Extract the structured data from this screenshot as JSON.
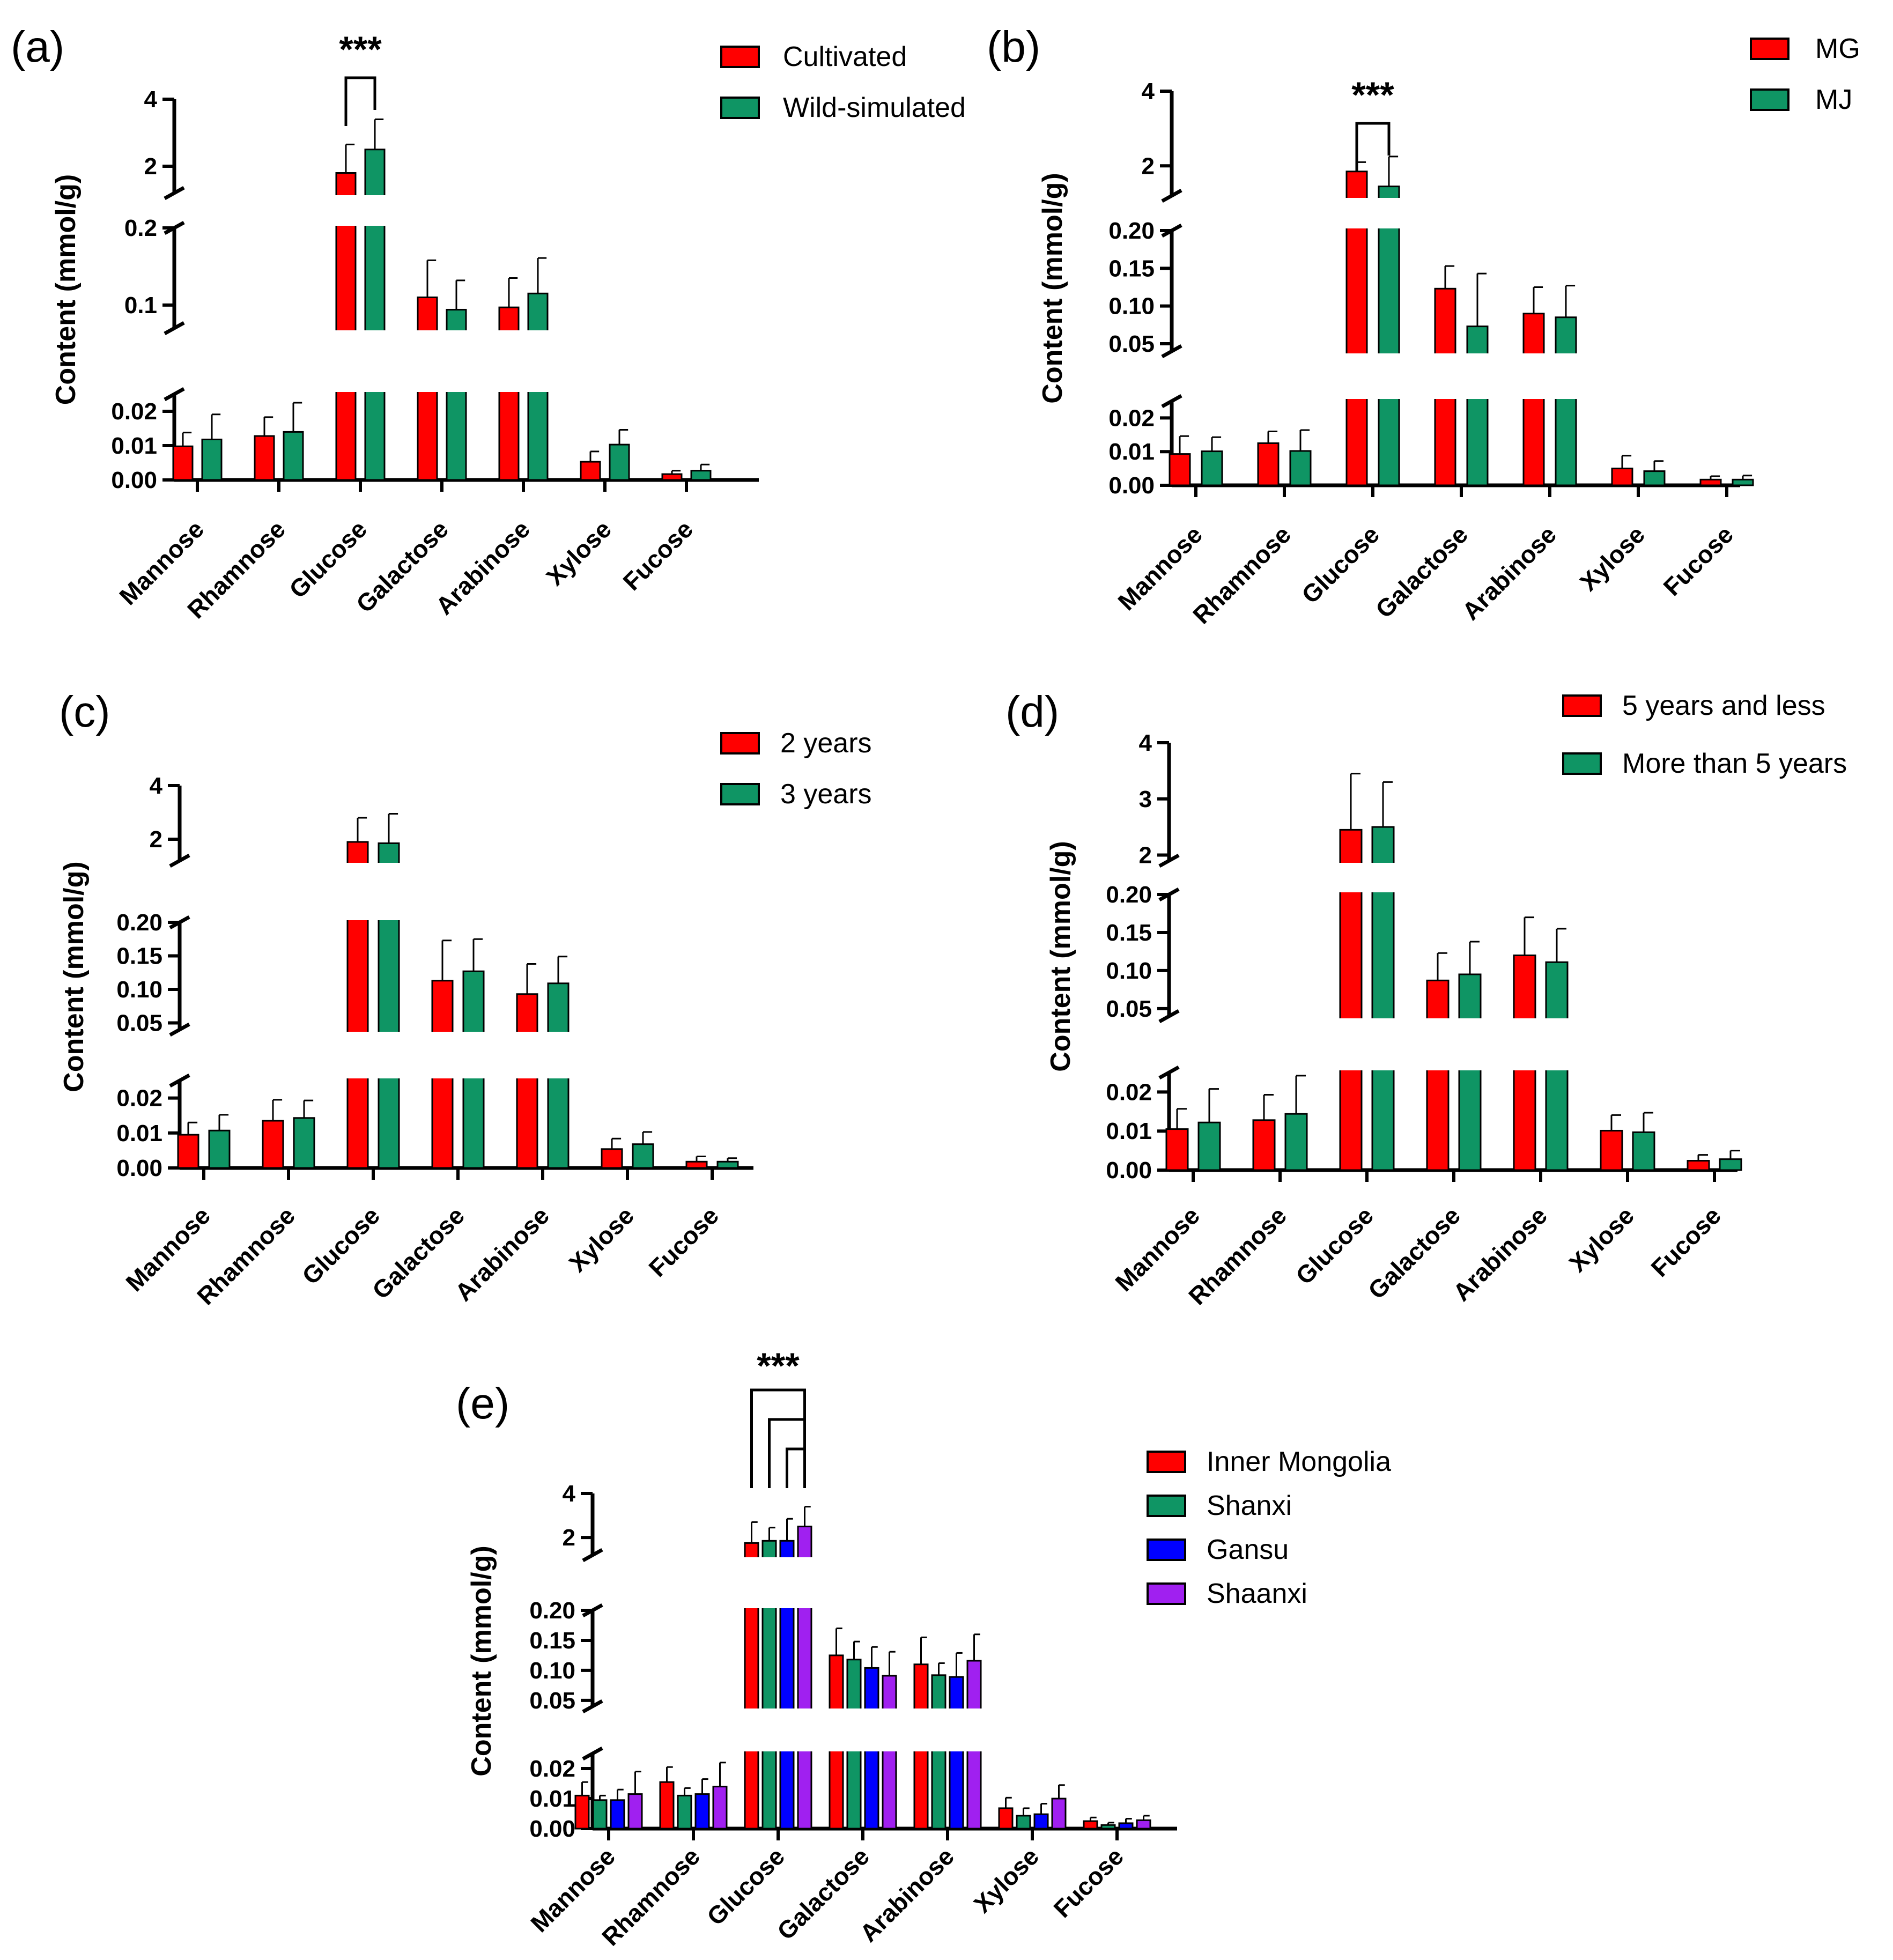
{
  "colors": {
    "red": "#ff0000",
    "green": "#0f9564",
    "blue": "#0000ff",
    "purple": "#a020f0"
  },
  "chart_data": [
    {
      "id": "a",
      "type": "bar",
      "panel_label": "(a)",
      "ylabel": "Content (mmol/g)",
      "categories": [
        "Mannose",
        "Rhamnose",
        "Glucose",
        "Galactose",
        "Arabinose",
        "Xylose",
        "Fucose"
      ],
      "series": [
        {
          "name": "Cultivated",
          "color": "#ff0000",
          "values": [
            0.0098,
            0.0128,
            1.8,
            0.11,
            0.097,
            0.0053,
            0.0017
          ],
          "errors": [
            0.004,
            0.0055,
            0.85,
            0.048,
            0.038,
            0.003,
            0.001
          ]
        },
        {
          "name": "Wild-simulated",
          "color": "#0f9564",
          "values": [
            0.0118,
            0.014,
            2.5,
            0.094,
            0.115,
            0.0103,
            0.0027
          ],
          "errors": [
            0.0073,
            0.0085,
            0.9,
            0.038,
            0.046,
            0.0043,
            0.0018
          ]
        }
      ],
      "segments": [
        {
          "min": 0,
          "max": 0.025,
          "ticks": [
            "0.00",
            "0.01",
            "0.02"
          ],
          "tickvals": [
            0,
            0.01,
            0.02
          ]
        },
        {
          "min": 0.07,
          "max": 0.2,
          "ticks": [
            "0.1",
            "0.2"
          ],
          "tickvals": [
            0.1,
            0.2
          ]
        },
        {
          "min": 1.2,
          "max": 4,
          "ticks": [
            "2",
            "4"
          ],
          "tickvals": [
            2,
            4
          ]
        }
      ],
      "significance": [
        {
          "category": "Glucose",
          "label": "***"
        }
      ]
    },
    {
      "id": "b",
      "type": "bar",
      "panel_label": "(b)",
      "ylabel": "Content (mmol/g)",
      "categories": [
        "Mannose",
        "Rhamnose",
        "Glucose",
        "Galactose",
        "Arabinose",
        "Xylose",
        "Fucose"
      ],
      "series": [
        {
          "name": "MG",
          "color": "#ff0000",
          "values": [
            0.0093,
            0.0125,
            1.85,
            0.123,
            0.09,
            0.005,
            0.0017
          ],
          "errors": [
            0.0053,
            0.0035,
            0.25,
            0.03,
            0.035,
            0.0038,
            0.001
          ]
        },
        {
          "name": "MJ",
          "color": "#0f9564",
          "values": [
            0.0101,
            0.0102,
            1.45,
            0.073,
            0.085,
            0.0042,
            0.0017
          ],
          "errors": [
            0.0042,
            0.0062,
            0.8,
            0.07,
            0.042,
            0.003,
            0.0012
          ]
        }
      ],
      "segments": [
        {
          "min": 0,
          "max": 0.025,
          "ticks": [
            "0.00",
            "0.01",
            "0.02"
          ],
          "tickvals": [
            0,
            0.01,
            0.02
          ]
        },
        {
          "min": 0.04,
          "max": 0.2,
          "ticks": [
            "0.05",
            "0.10",
            "0.15",
            "0.20"
          ],
          "tickvals": [
            0.05,
            0.1,
            0.15,
            0.2
          ]
        },
        {
          "min": 1.2,
          "max": 4,
          "ticks": [
            "2",
            "4"
          ],
          "tickvals": [
            2,
            4
          ]
        }
      ],
      "significance": [
        {
          "category": "Glucose",
          "label": "***"
        }
      ]
    },
    {
      "id": "c",
      "type": "bar",
      "panel_label": "(c)",
      "ylabel": "Content (mmol/g)",
      "categories": [
        "Mannose",
        "Rhamnose",
        "Glucose",
        "Galactose",
        "Arabinose",
        "Xylose",
        "Fucose"
      ],
      "series": [
        {
          "name": "2 years",
          "color": "#ff0000",
          "values": [
            0.0095,
            0.0135,
            1.9,
            0.113,
            0.093,
            0.0054,
            0.0018
          ],
          "errors": [
            0.0035,
            0.006,
            0.9,
            0.06,
            0.045,
            0.003,
            0.0015
          ]
        },
        {
          "name": "3 years",
          "color": "#0f9564",
          "values": [
            0.0107,
            0.0143,
            1.85,
            0.127,
            0.109,
            0.0068,
            0.0018
          ],
          "errors": [
            0.0045,
            0.005,
            1.1,
            0.048,
            0.04,
            0.0035,
            0.001
          ]
        }
      ],
      "segments": [
        {
          "min": 0,
          "max": 0.025,
          "ticks": [
            "0.00",
            "0.01",
            "0.02"
          ],
          "tickvals": [
            0,
            0.01,
            0.02
          ]
        },
        {
          "min": 0.04,
          "max": 0.2,
          "ticks": [
            "0.05",
            "0.10",
            "0.15",
            "0.20"
          ],
          "tickvals": [
            0.05,
            0.1,
            0.15,
            0.2
          ]
        },
        {
          "min": 1.2,
          "max": 4,
          "ticks": [
            "2",
            "4"
          ],
          "tickvals": [
            2,
            4
          ]
        }
      ],
      "significance": []
    },
    {
      "id": "d",
      "type": "bar",
      "panel_label": "(d)",
      "ylabel": "Content (mmol/g)",
      "categories": [
        "Mannose",
        "Rhamnose",
        "Glucose",
        "Galactose",
        "Arabinose",
        "Xylose",
        "Fucose"
      ],
      "series": [
        {
          "name": "5 years and less",
          "color": "#ff0000",
          "values": [
            0.0105,
            0.0128,
            2.45,
            0.087,
            0.12,
            0.0101,
            0.0024
          ],
          "errors": [
            0.0052,
            0.0065,
            1.0,
            0.036,
            0.05,
            0.004,
            0.0015
          ]
        },
        {
          "name": "More than 5 years",
          "color": "#0f9564",
          "values": [
            0.0122,
            0.0144,
            2.5,
            0.095,
            0.111,
            0.0097,
            0.0028
          ],
          "errors": [
            0.0086,
            0.0098,
            0.8,
            0.043,
            0.044,
            0.005,
            0.0022
          ]
        }
      ],
      "segments": [
        {
          "min": 0,
          "max": 0.025,
          "ticks": [
            "0.00",
            "0.01",
            "0.02"
          ],
          "tickvals": [
            0,
            0.01,
            0.02
          ]
        },
        {
          "min": 0.04,
          "max": 0.2,
          "ticks": [
            "0.05",
            "0.10",
            "0.15",
            "0.20"
          ],
          "tickvals": [
            0.05,
            0.1,
            0.15,
            0.2
          ]
        },
        {
          "min": 1.9,
          "max": 4,
          "ticks": [
            "2",
            "3",
            "4"
          ],
          "tickvals": [
            2,
            3,
            4
          ]
        }
      ],
      "significance": []
    },
    {
      "id": "e",
      "type": "bar",
      "panel_label": "(e)",
      "ylabel": "Content (mmol/g)",
      "categories": [
        "Mannose",
        "Rhamnose",
        "Glucose",
        "Galactose",
        "Arabinose",
        "Xylose",
        "Fucose"
      ],
      "series": [
        {
          "name": "Inner Mongolia",
          "color": "#ff0000",
          "values": [
            0.011,
            0.0155,
            1.75,
            0.125,
            0.11,
            0.0068,
            0.0025
          ],
          "errors": [
            0.0045,
            0.005,
            0.95,
            0.045,
            0.045,
            0.0035,
            0.0012
          ]
        },
        {
          "name": "Shanxi",
          "color": "#0f9564",
          "values": [
            0.0095,
            0.011,
            1.85,
            0.118,
            0.092,
            0.0043,
            0.0012
          ],
          "errors": [
            0.0015,
            0.0025,
            0.6,
            0.03,
            0.02,
            0.0025,
            0.0008
          ]
        },
        {
          "name": "Gansu",
          "color": "#0000ff",
          "values": [
            0.0095,
            0.0115,
            1.85,
            0.104,
            0.089,
            0.0048,
            0.0018
          ],
          "errors": [
            0.0035,
            0.005,
            1.0,
            0.035,
            0.04,
            0.0035,
            0.0015
          ]
        },
        {
          "name": "Shaanxi",
          "color": "#a020f0",
          "values": [
            0.0115,
            0.014,
            2.5,
            0.091,
            0.116,
            0.01,
            0.0028
          ],
          "errors": [
            0.0075,
            0.008,
            0.9,
            0.04,
            0.044,
            0.0045,
            0.0015
          ]
        }
      ],
      "segments": [
        {
          "min": 0,
          "max": 0.025,
          "ticks": [
            "0.00",
            "0.01",
            "0.02"
          ],
          "tickvals": [
            0,
            0.01,
            0.02
          ]
        },
        {
          "min": 0.04,
          "max": 0.2,
          "ticks": [
            "0.05",
            "0.10",
            "0.15",
            "0.20"
          ],
          "tickvals": [
            0.05,
            0.1,
            0.15,
            0.2
          ]
        },
        {
          "min": 1.2,
          "max": 4,
          "ticks": [
            "2",
            "4"
          ],
          "tickvals": [
            2,
            4
          ]
        }
      ],
      "significance": [
        {
          "category": "Glucose",
          "label": "***",
          "type": "multi"
        }
      ]
    }
  ]
}
